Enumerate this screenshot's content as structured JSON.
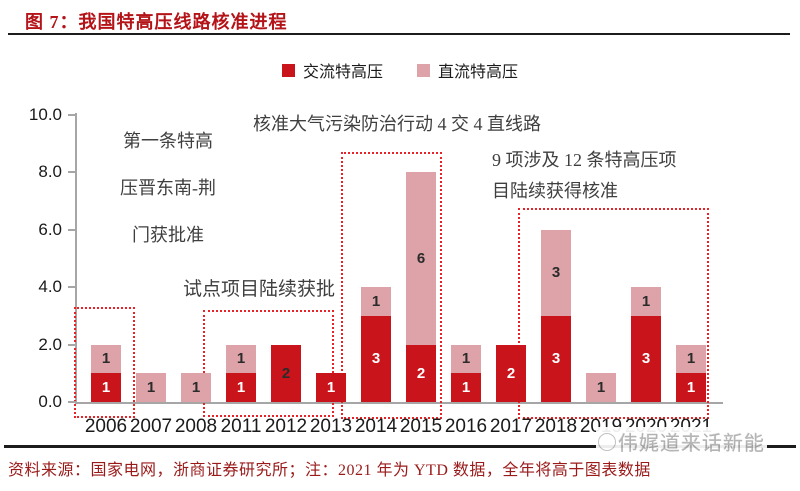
{
  "header": {
    "title": "图 7：我国特高压线路核准进程"
  },
  "legend": {
    "items": [
      {
        "label": "交流特高压",
        "color": "#c9141b"
      },
      {
        "label": "直流特高压",
        "color": "#dda3a8"
      }
    ]
  },
  "chart_data": {
    "type": "bar",
    "stacked": true,
    "title": "我国特高压线路核准进程",
    "categories": [
      "2006",
      "2007",
      "2008",
      "2011",
      "2012",
      "2013",
      "2014",
      "2015",
      "2016",
      "2017",
      "2018",
      "2019",
      "2020",
      "2021"
    ],
    "series": [
      {
        "name": "交流特高压",
        "color": "#c9141b",
        "values": [
          1,
          0,
          0,
          1,
          2,
          1,
          3,
          2,
          1,
          2,
          3,
          0,
          3,
          1
        ]
      },
      {
        "name": "直流特高压",
        "color": "#dda3a8",
        "values": [
          1,
          1,
          1,
          1,
          0,
          0,
          1,
          6,
          1,
          0,
          3,
          1,
          1,
          1
        ]
      }
    ],
    "ylim": [
      0,
      10
    ],
    "yticks": [
      "10.0",
      "8.0",
      "6.0",
      "4.0",
      "2.0",
      "0.0"
    ],
    "grid": false,
    "legend_position": "top",
    "label_dark_on_ac": [
      "2012"
    ],
    "annotations": [
      {
        "id": "first-line",
        "text": "第一条特高\n压晋东南-荆\n门获批准"
      },
      {
        "id": "air-action",
        "text": "核准大气污染防治行动 4 交 4 直线路"
      },
      {
        "id": "pilot",
        "text": "试点项目陆续获批"
      },
      {
        "id": "nine-items",
        "text": "9 项涉及 12 条特高压项\n目陆续获得核准"
      }
    ],
    "highlight_boxes": [
      {
        "years": "2006"
      },
      {
        "years": "2011-2013"
      },
      {
        "years": "2014-2015"
      },
      {
        "years": "2018-2021"
      }
    ]
  },
  "footer": {
    "source_note": "资料来源：国家电网，浙商证券研究所；注：2021 年为 YTD 数据，全年将高于图表数据"
  },
  "watermark": {
    "text": "伟娓道来话新能"
  }
}
